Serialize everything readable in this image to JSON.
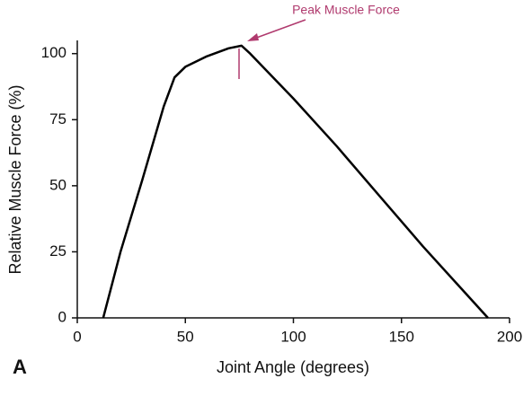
{
  "chart_data": {
    "type": "line",
    "annotation": "Peak Muscle Force",
    "panel_label": "A",
    "x_label": "Joint Angle (degrees)",
    "y_label": "Relative Muscle Force (%)",
    "x": [
      12,
      20,
      30,
      40,
      45,
      50,
      60,
      70,
      76,
      80,
      100,
      120,
      140,
      160,
      180,
      190
    ],
    "values": [
      0,
      25,
      52,
      80,
      91,
      95,
      99,
      102,
      103,
      100,
      83,
      65,
      46,
      27,
      9,
      0
    ],
    "color": "#000000",
    "xlim": [
      0,
      200
    ],
    "xticks": [
      0,
      50,
      100,
      150,
      200
    ],
    "ylim": [
      0,
      105
    ],
    "yticks": [
      0,
      25,
      50,
      75,
      100
    ]
  }
}
